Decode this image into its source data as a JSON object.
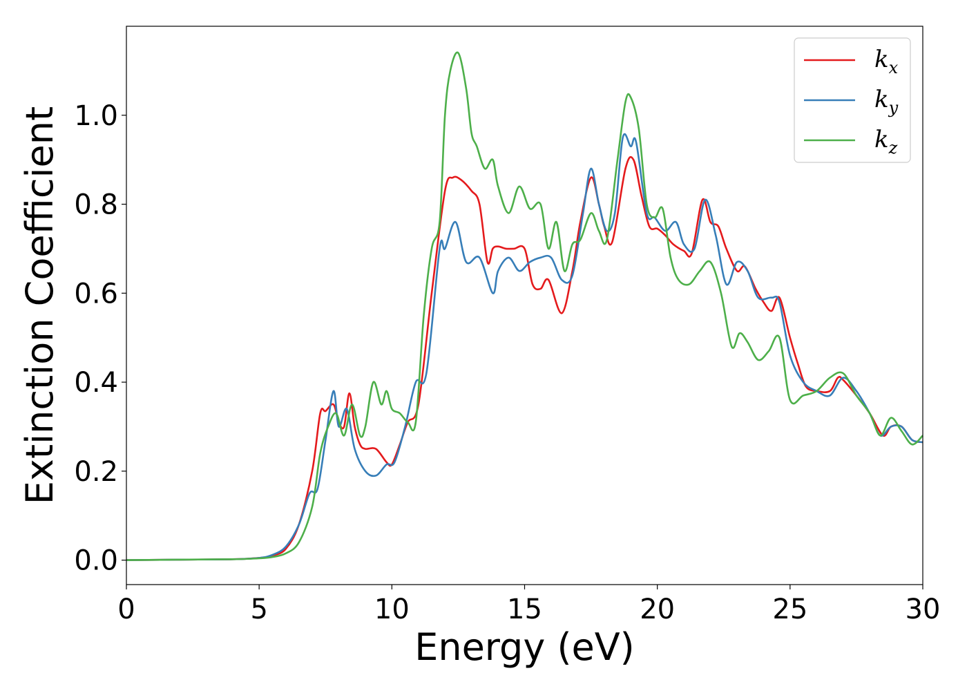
{
  "chart_data": {
    "type": "line",
    "title": "",
    "xlabel": "Energy (eV)",
    "ylabel": "Extinction Coefficient",
    "xlim": [
      0,
      30
    ],
    "ylim": [
      -0.055,
      1.2
    ],
    "xticks": [
      0,
      5,
      10,
      15,
      20,
      25,
      30
    ],
    "yticks": [
      0.0,
      0.2,
      0.4,
      0.6,
      0.8,
      1.0
    ],
    "ytick_labels": [
      "0.0",
      "0.2",
      "0.4",
      "0.6",
      "0.8",
      "1.0"
    ],
    "grid": false,
    "legend_position": "top-right",
    "series": [
      {
        "name": "k_x",
        "label_main": "k",
        "label_sub": "x",
        "color": "#e41a1c",
        "x": [
          0,
          2,
          4,
          5,
          5.5,
          6,
          6.5,
          7,
          7.3,
          7.5,
          7.8,
          8.0,
          8.2,
          8.4,
          8.6,
          8.8,
          9.0,
          9.4,
          9.8,
          10.0,
          10.3,
          10.6,
          11.0,
          11.5,
          12.0,
          12.3,
          12.6,
          13.0,
          13.3,
          13.6,
          13.8,
          14.0,
          14.3,
          14.6,
          15.0,
          15.3,
          15.6,
          15.9,
          16.4,
          16.8,
          17.1,
          17.5,
          17.8,
          18.0,
          18.3,
          18.8,
          19.1,
          19.4,
          19.7,
          20.0,
          20.3,
          20.6,
          21.0,
          21.3,
          21.7,
          22.0,
          22.3,
          22.6,
          23.0,
          23.3,
          23.7,
          24.0,
          24.3,
          24.6,
          25.0,
          25.3,
          25.6,
          26.0,
          26.5,
          26.8,
          27.0,
          27.5,
          28.0,
          28.5,
          28.8,
          29.2,
          29.6,
          30.0
        ],
        "values": [
          0.0,
          0.001,
          0.002,
          0.005,
          0.01,
          0.025,
          0.08,
          0.2,
          0.33,
          0.335,
          0.35,
          0.31,
          0.3,
          0.375,
          0.3,
          0.26,
          0.25,
          0.25,
          0.22,
          0.215,
          0.26,
          0.31,
          0.35,
          0.6,
          0.83,
          0.86,
          0.855,
          0.83,
          0.8,
          0.67,
          0.7,
          0.705,
          0.7,
          0.7,
          0.7,
          0.62,
          0.61,
          0.63,
          0.555,
          0.65,
          0.76,
          0.86,
          0.8,
          0.75,
          0.715,
          0.88,
          0.9,
          0.82,
          0.75,
          0.745,
          0.73,
          0.71,
          0.695,
          0.69,
          0.81,
          0.76,
          0.75,
          0.7,
          0.65,
          0.66,
          0.61,
          0.58,
          0.56,
          0.59,
          0.5,
          0.44,
          0.39,
          0.38,
          0.38,
          0.41,
          0.405,
          0.37,
          0.33,
          0.28,
          0.3,
          0.3,
          0.27,
          0.265
        ]
      },
      {
        "name": "k_y",
        "label_main": "k",
        "label_sub": "y",
        "color": "#377eb8",
        "x": [
          0,
          2,
          4,
          5,
          5.5,
          6,
          6.5,
          6.9,
          7.2,
          7.5,
          7.8,
          8.0,
          8.3,
          8.6,
          9.0,
          9.4,
          9.8,
          10.1,
          10.5,
          10.9,
          11.3,
          11.8,
          12.0,
          12.4,
          12.8,
          13.3,
          13.8,
          14.0,
          14.4,
          14.8,
          15.2,
          15.6,
          16.0,
          16.4,
          16.8,
          17.2,
          17.5,
          17.8,
          18.1,
          18.4,
          18.7,
          19.0,
          19.2,
          19.6,
          19.9,
          20.3,
          20.7,
          21.0,
          21.4,
          21.8,
          22.2,
          22.6,
          23.0,
          23.4,
          23.8,
          24.3,
          24.6,
          25.0,
          25.5,
          26.0,
          26.5,
          27.0,
          27.5,
          28.0,
          28.4,
          28.8,
          29.2,
          29.6,
          30.0
        ],
        "values": [
          0.0,
          0.001,
          0.002,
          0.005,
          0.012,
          0.03,
          0.08,
          0.15,
          0.16,
          0.27,
          0.38,
          0.3,
          0.34,
          0.25,
          0.2,
          0.19,
          0.215,
          0.22,
          0.3,
          0.4,
          0.42,
          0.7,
          0.7,
          0.76,
          0.67,
          0.68,
          0.6,
          0.65,
          0.68,
          0.65,
          0.67,
          0.68,
          0.68,
          0.63,
          0.64,
          0.78,
          0.88,
          0.8,
          0.74,
          0.78,
          0.95,
          0.93,
          0.94,
          0.78,
          0.77,
          0.74,
          0.76,
          0.71,
          0.7,
          0.81,
          0.73,
          0.62,
          0.67,
          0.65,
          0.59,
          0.59,
          0.58,
          0.46,
          0.4,
          0.38,
          0.37,
          0.41,
          0.38,
          0.33,
          0.28,
          0.3,
          0.3,
          0.27,
          0.265
        ]
      },
      {
        "name": "k_z",
        "label_main": "k",
        "label_sub": "z",
        "color": "#4daf4a",
        "x": [
          0,
          2,
          4,
          5,
          5.5,
          6,
          6.5,
          7.0,
          7.3,
          7.6,
          7.9,
          8.2,
          8.5,
          8.8,
          9.0,
          9.3,
          9.6,
          9.8,
          10.0,
          10.3,
          10.6,
          10.9,
          11.2,
          11.5,
          11.8,
          12.0,
          12.2,
          12.5,
          12.8,
          13.0,
          13.2,
          13.5,
          13.8,
          14.0,
          14.4,
          14.8,
          15.2,
          15.6,
          15.9,
          16.2,
          16.5,
          16.8,
          17.1,
          17.5,
          17.8,
          18.1,
          18.5,
          18.8,
          19.0,
          19.3,
          19.6,
          19.9,
          20.2,
          20.5,
          20.8,
          21.2,
          21.6,
          22.0,
          22.4,
          22.8,
          23.1,
          23.4,
          23.8,
          24.2,
          24.6,
          25.0,
          25.5,
          26.0,
          26.5,
          27.0,
          27.5,
          28.0,
          28.4,
          28.8,
          29.2,
          29.6,
          30.0
        ],
        "values": [
          0.0,
          0.001,
          0.002,
          0.004,
          0.007,
          0.015,
          0.04,
          0.12,
          0.24,
          0.3,
          0.33,
          0.28,
          0.35,
          0.28,
          0.3,
          0.4,
          0.35,
          0.38,
          0.34,
          0.33,
          0.31,
          0.31,
          0.55,
          0.7,
          0.76,
          1.0,
          1.1,
          1.14,
          1.06,
          0.96,
          0.93,
          0.88,
          0.9,
          0.84,
          0.78,
          0.84,
          0.79,
          0.8,
          0.7,
          0.76,
          0.65,
          0.71,
          0.72,
          0.78,
          0.74,
          0.72,
          0.9,
          1.03,
          1.04,
          0.97,
          0.8,
          0.77,
          0.79,
          0.68,
          0.63,
          0.62,
          0.65,
          0.67,
          0.6,
          0.48,
          0.51,
          0.49,
          0.45,
          0.47,
          0.5,
          0.36,
          0.37,
          0.38,
          0.41,
          0.42,
          0.37,
          0.33,
          0.28,
          0.32,
          0.29,
          0.26,
          0.28
        ]
      }
    ]
  }
}
